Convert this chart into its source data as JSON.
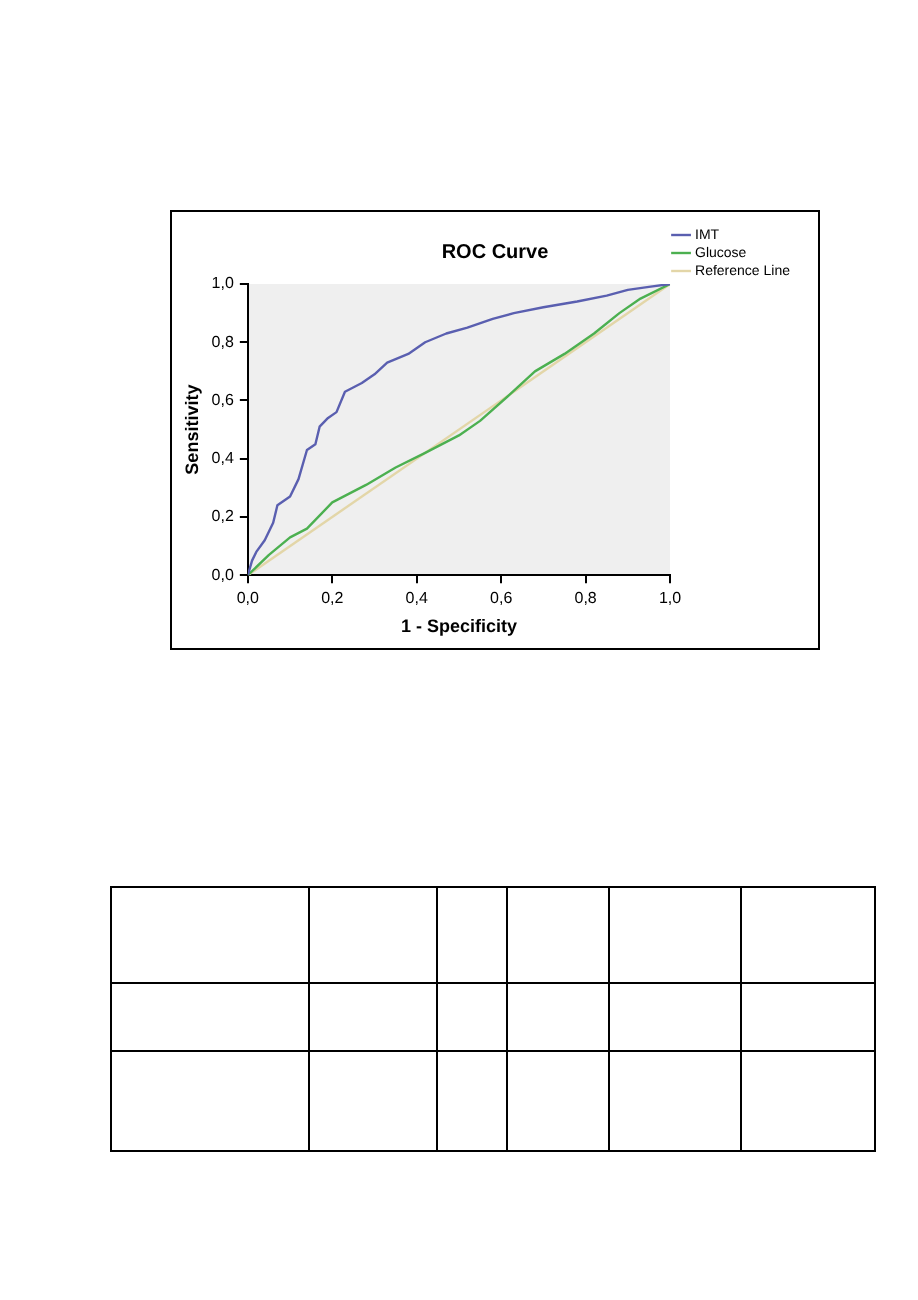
{
  "chart_data": {
    "type": "line",
    "title": "ROC Curve",
    "xlabel": "1 - Specificity",
    "ylabel": "Sensitivity",
    "xlim": [
      0,
      1
    ],
    "ylim": [
      0,
      1
    ],
    "xticks": [
      {
        "value": 0,
        "label": "0,0"
      },
      {
        "value": 0.2,
        "label": "0,2"
      },
      {
        "value": 0.4,
        "label": "0,4"
      },
      {
        "value": 0.6,
        "label": "0,6"
      },
      {
        "value": 0.8,
        "label": "0,8"
      },
      {
        "value": 1,
        "label": "1,0"
      }
    ],
    "yticks": [
      {
        "value": 0,
        "label": "0,0"
      },
      {
        "value": 0.2,
        "label": "0,2"
      },
      {
        "value": 0.4,
        "label": "0,4"
      },
      {
        "value": 0.6,
        "label": "0,6"
      },
      {
        "value": 0.8,
        "label": "0,8"
      },
      {
        "value": 1,
        "label": "1,0"
      }
    ],
    "grid": false,
    "legend": "right",
    "marker": "none",
    "series": [
      {
        "name": "IMT",
        "color": "#5a5fb0",
        "x": [
          0,
          0.01,
          0.02,
          0.04,
          0.06,
          0.07,
          0.1,
          0.12,
          0.14,
          0.16,
          0.17,
          0.19,
          0.21,
          0.23,
          0.27,
          0.3,
          0.33,
          0.38,
          0.42,
          0.47,
          0.52,
          0.58,
          0.63,
          0.7,
          0.78,
          0.85,
          0.9,
          0.95,
          1
        ],
        "values": [
          0,
          0.05,
          0.08,
          0.12,
          0.18,
          0.24,
          0.27,
          0.33,
          0.43,
          0.45,
          0.51,
          0.54,
          0.56,
          0.63,
          0.66,
          0.69,
          0.73,
          0.76,
          0.8,
          0.83,
          0.85,
          0.88,
          0.9,
          0.92,
          0.94,
          0.96,
          0.98,
          0.99,
          1
        ]
      },
      {
        "name": "Glucose",
        "color": "#4cb050",
        "x": [
          0,
          0.05,
          0.1,
          0.14,
          0.2,
          0.28,
          0.35,
          0.42,
          0.5,
          0.55,
          0.62,
          0.68,
          0.75,
          0.82,
          0.88,
          0.93,
          1
        ],
        "values": [
          0,
          0.07,
          0.13,
          0.16,
          0.25,
          0.31,
          0.37,
          0.42,
          0.48,
          0.53,
          0.62,
          0.7,
          0.76,
          0.83,
          0.9,
          0.95,
          1
        ]
      },
      {
        "name": "Reference Line",
        "color": "#e3d6a8",
        "x": [
          0,
          1
        ],
        "values": [
          0,
          1
        ]
      }
    ]
  }
}
